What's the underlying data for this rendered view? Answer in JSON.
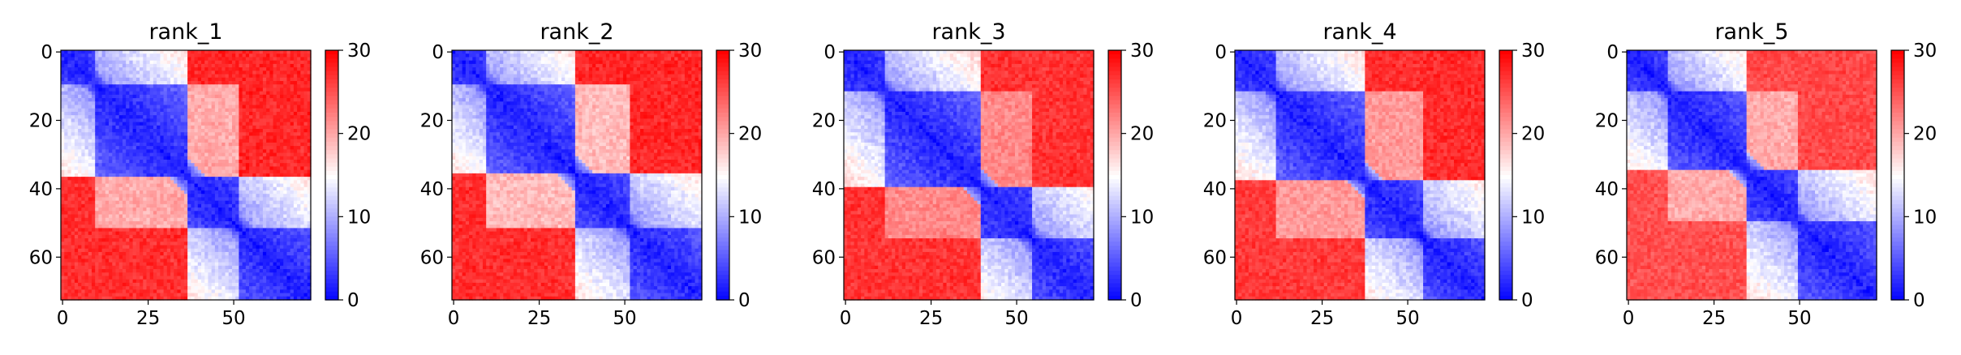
{
  "figure": {
    "panel_count": 5
  },
  "chart_data": [
    {
      "type": "heatmap",
      "title": "rank_1",
      "x_ticks": [
        0,
        25,
        50
      ],
      "y_ticks": [
        0,
        20,
        40,
        60
      ],
      "xlim": [
        0,
        73
      ],
      "ylim": [
        73,
        0
      ],
      "colorbar": {
        "min": 0,
        "max": 30,
        "ticks": [
          0,
          10,
          20,
          30
        ],
        "colormap": "bwr"
      },
      "values": {
        "matrix_size": 73,
        "domain_blocks": [
          [
            0,
            10,
            "near"
          ],
          [
            10,
            37,
            "near"
          ],
          [
            37,
            52,
            "mid"
          ],
          [
            52,
            73,
            "mid"
          ]
        ],
        "off_diagonal": {
          "top_right_far": 28,
          "bottom_left_far": 27,
          "middle_band": 20
        }
      }
    },
    {
      "type": "heatmap",
      "title": "rank_2",
      "x_ticks": [
        0,
        25,
        50
      ],
      "y_ticks": [
        0,
        20,
        40,
        60
      ],
      "xlim": [
        0,
        73
      ],
      "ylim": [
        73,
        0
      ],
      "colorbar": {
        "min": 0,
        "max": 30,
        "ticks": [
          0,
          10,
          20,
          30
        ],
        "colormap": "bwr"
      },
      "values": {
        "matrix_size": 73,
        "domain_blocks": [
          [
            0,
            10,
            "near"
          ],
          [
            10,
            36,
            "near"
          ],
          [
            36,
            52,
            "mid"
          ],
          [
            52,
            73,
            "mid"
          ]
        ],
        "off_diagonal": {
          "top_right_far": 28,
          "bottom_left_far": 27,
          "middle_band": 19
        }
      }
    },
    {
      "type": "heatmap",
      "title": "rank_3",
      "x_ticks": [
        0,
        25,
        50
      ],
      "y_ticks": [
        0,
        20,
        40,
        60
      ],
      "xlim": [
        0,
        73
      ],
      "ylim": [
        73,
        0
      ],
      "colorbar": {
        "min": 0,
        "max": 30,
        "ticks": [
          0,
          10,
          20,
          30
        ],
        "colormap": "bwr"
      },
      "values": {
        "matrix_size": 73,
        "domain_blocks": [
          [
            0,
            12,
            "near"
          ],
          [
            12,
            40,
            "near"
          ],
          [
            40,
            55,
            "mid"
          ],
          [
            55,
            73,
            "mid"
          ]
        ],
        "off_diagonal": {
          "top_right_far": 27,
          "bottom_left_far": 27,
          "middle_band": 22
        }
      }
    },
    {
      "type": "heatmap",
      "title": "rank_4",
      "x_ticks": [
        0,
        25,
        50
      ],
      "y_ticks": [
        0,
        20,
        40,
        60
      ],
      "xlim": [
        0,
        73
      ],
      "ylim": [
        73,
        0
      ],
      "colorbar": {
        "min": 0,
        "max": 30,
        "ticks": [
          0,
          10,
          20,
          30
        ],
        "colormap": "bwr"
      },
      "values": {
        "matrix_size": 73,
        "domain_blocks": [
          [
            0,
            12,
            "near"
          ],
          [
            12,
            38,
            "near"
          ],
          [
            38,
            55,
            "mid"
          ],
          [
            55,
            73,
            "mid"
          ]
        ],
        "off_diagonal": {
          "top_right_far": 28,
          "bottom_left_far": 26,
          "middle_band": 21
        }
      }
    },
    {
      "type": "heatmap",
      "title": "rank_5",
      "x_ticks": [
        0,
        25,
        50
      ],
      "y_ticks": [
        0,
        20,
        40,
        60
      ],
      "xlim": [
        0,
        73
      ],
      "ylim": [
        73,
        0
      ],
      "colorbar": {
        "min": 0,
        "max": 30,
        "ticks": [
          0,
          10,
          20,
          30
        ],
        "colormap": "bwr"
      },
      "values": {
        "matrix_size": 73,
        "domain_blocks": [
          [
            0,
            12,
            "near"
          ],
          [
            12,
            35,
            "near"
          ],
          [
            35,
            50,
            "mid"
          ],
          [
            50,
            73,
            "mid"
          ]
        ],
        "off_diagonal": {
          "top_right_far": 26,
          "bottom_left_far": 25,
          "middle_band": 20
        }
      }
    }
  ]
}
